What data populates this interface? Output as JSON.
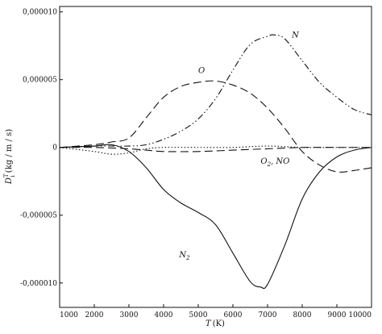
{
  "chart_data": {
    "type": "line",
    "title": "",
    "xlabel_main": "T",
    "xlabel_unit": "(K)",
    "ylabel_main": "D",
    "ylabel_sup": "T",
    "ylabel_sub": "i",
    "ylabel_unit": "(kg / m / s)",
    "xlim": [
      1000,
      10000
    ],
    "ylim": [
      -1.18e-05,
      1.04e-05
    ],
    "x_ticks": [
      1000,
      2000,
      3000,
      4000,
      5000,
      6000,
      7000,
      8000,
      9000,
      10000
    ],
    "x_tick_labels": [
      "1000",
      "2000",
      "3000",
      "4000",
      "5000",
      "6000",
      "7000",
      "8000",
      "9000",
      "10000"
    ],
    "y_ticks": [
      1e-05,
      5e-06,
      0,
      -5e-06,
      -1e-05
    ],
    "y_tick_labels": [
      "0,000010",
      "0,000005",
      "0",
      "-0,000005",
      "-0,000010"
    ],
    "grid": false,
    "legend": "none",
    "series": [
      {
        "name": "O",
        "dash": "long-dash",
        "x": [
          1000,
          2000,
          2500,
          3000,
          3500,
          4000,
          4500,
          5000,
          5500,
          6000,
          6500,
          7000,
          7500,
          8000,
          8500,
          9000,
          9500,
          10000
        ],
        "y": [
          0,
          2e-07,
          4e-07,
          7e-07,
          2.2e-06,
          3.7e-06,
          4.5e-06,
          4.8e-06,
          4.9e-06,
          4.6e-06,
          4e-06,
          2.9e-06,
          1.4e-06,
          -3e-07,
          -1.3e-06,
          -1.8e-06,
          -1.7e-06,
          -1.5e-06
        ]
      },
      {
        "name": "N",
        "dash": "dash-dot-dot",
        "x": [
          1000,
          2000,
          3000,
          3500,
          4000,
          4500,
          5000,
          5500,
          6000,
          6500,
          7000,
          7200,
          7500,
          8000,
          8500,
          9000,
          9500,
          10000
        ],
        "y": [
          0,
          1e-07,
          1e-07,
          2e-07,
          6e-07,
          1.2e-06,
          2.1e-06,
          3.6e-06,
          5.7e-06,
          7.6e-06,
          8.2e-06,
          8.3e-06,
          8e-06,
          6.4e-06,
          4.8e-06,
          3.7e-06,
          2.8e-06,
          2.4e-06
        ]
      },
      {
        "name": "N2",
        "dash": "solid",
        "x": [
          1000,
          2000,
          2500,
          3000,
          3500,
          4000,
          4500,
          5000,
          5500,
          6000,
          6500,
          6800,
          7000,
          7500,
          8000,
          8500,
          9000,
          9500,
          10000
        ],
        "y": [
          0,
          1e-07,
          2e-07,
          -3e-07,
          -1.5e-06,
          -3.1e-06,
          -4.1e-06,
          -4.8e-06,
          -5.7e-06,
          -7.8e-06,
          -9.9e-06,
          -1.03e-05,
          -1.01e-05,
          -7.2e-06,
          -3.8e-06,
          -1.8e-06,
          -7e-07,
          -2e-07,
          0
        ]
      },
      {
        "name": "O2",
        "dash": "dotted",
        "x": [
          1000,
          2000,
          2500,
          3000,
          3500,
          4000,
          5000,
          6000,
          7000,
          8000,
          9000,
          10000
        ],
        "y": [
          0,
          -3e-07,
          -5e-07,
          -4e-07,
          -1e-07,
          0,
          0,
          0,
          1e-07,
          0,
          0,
          0
        ]
      },
      {
        "name": "NO",
        "dash": "long-dash",
        "x": [
          1000,
          2000,
          3000,
          3500,
          4000,
          5000,
          6000,
          7000,
          8000,
          9000,
          10000
        ],
        "y": [
          0,
          0,
          -1e-07,
          -2e-07,
          -3e-07,
          -3e-07,
          -2e-07,
          -1e-07,
          0,
          0,
          0
        ]
      }
    ],
    "annotations": [
      {
        "text": "O",
        "x": 5000,
        "y": 5.5e-06
      },
      {
        "text": "N",
        "x": 7700,
        "y": 8.1e-06
      },
      {
        "text": "O",
        "sub": "2",
        "text2": ", ",
        "text3": "NO",
        "x": 6800,
        "y": -1.2e-06
      },
      {
        "text": "N",
        "sub": "2",
        "x": 4450,
        "y": -8.1e-06
      }
    ]
  }
}
